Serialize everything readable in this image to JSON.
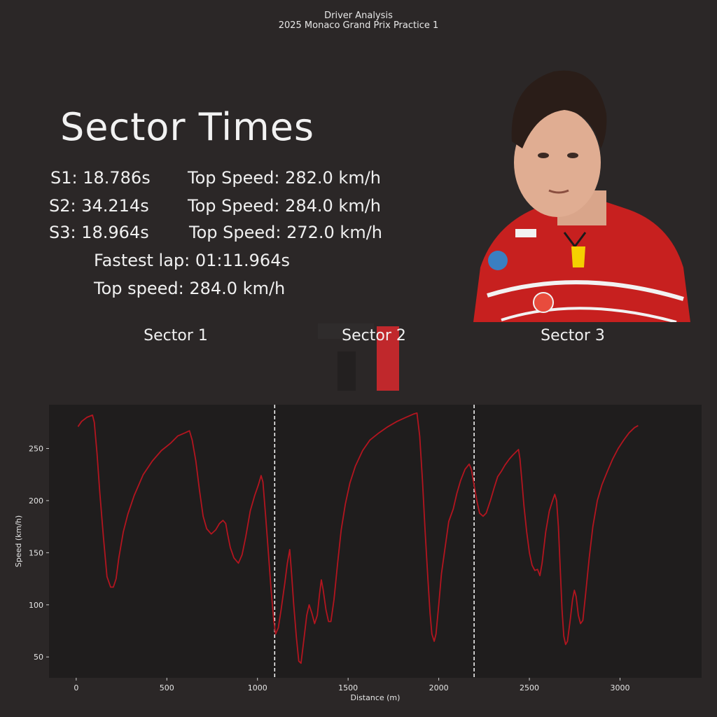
{
  "header": {
    "line1": "Driver Analysis",
    "line2": "2025 Monaco Grand Prix Practice 1"
  },
  "summary": {
    "title": "Sector Times",
    "s1": "S1: 18.786s",
    "s2": "S2: 34.214s",
    "s3": "S3: 18.964s",
    "top1": "Top Speed: 282.0 km/h",
    "top2": "Top Speed: 284.0 km/h",
    "top3": "Top Speed: 272.0 km/h",
    "fastest_lap": "Fastest lap: 01:11.964s",
    "top_speed": "Top speed: 284.0 km/h"
  },
  "sectors": {
    "label1": "Sector 1",
    "label2": "Sector 2",
    "label3": "Sector 3"
  },
  "colors": {
    "background": "#2b2727",
    "plot_bg": "#1f1d1d",
    "line": "#b3151f",
    "brand_red": "#c0282c"
  },
  "chart_data": {
    "type": "line",
    "title": "",
    "xlabel": "Distance (m)",
    "ylabel": "Speed (km/h)",
    "xlim": [
      -150,
      3450
    ],
    "ylim": [
      30,
      292
    ],
    "xticks": [
      0,
      500,
      1000,
      1500,
      2000,
      2500,
      3000
    ],
    "yticks": [
      50,
      100,
      150,
      200,
      250
    ],
    "sector_boundaries": [
      1095,
      2195
    ],
    "grid": false,
    "series": [
      {
        "points": [
          [
            10,
            271
          ],
          [
            30,
            276
          ],
          [
            60,
            280
          ],
          [
            90,
            282
          ],
          [
            100,
            275
          ],
          [
            115,
            245
          ],
          [
            130,
            208
          ],
          [
            150,
            165
          ],
          [
            170,
            127
          ],
          [
            190,
            117
          ],
          [
            205,
            117
          ],
          [
            220,
            125
          ],
          [
            235,
            145
          ],
          [
            260,
            170
          ],
          [
            285,
            187
          ],
          [
            320,
            205
          ],
          [
            370,
            225
          ],
          [
            420,
            238
          ],
          [
            470,
            248
          ],
          [
            520,
            255
          ],
          [
            560,
            262
          ],
          [
            600,
            265
          ],
          [
            625,
            267
          ],
          [
            640,
            258
          ],
          [
            660,
            238
          ],
          [
            680,
            210
          ],
          [
            700,
            185
          ],
          [
            720,
            173
          ],
          [
            745,
            168
          ],
          [
            770,
            172
          ],
          [
            790,
            178
          ],
          [
            810,
            181
          ],
          [
            825,
            178
          ],
          [
            835,
            168
          ],
          [
            850,
            155
          ],
          [
            870,
            145
          ],
          [
            895,
            140
          ],
          [
            915,
            148
          ],
          [
            935,
            165
          ],
          [
            960,
            190
          ],
          [
            985,
            205
          ],
          [
            1005,
            215
          ],
          [
            1020,
            224
          ],
          [
            1030,
            218
          ],
          [
            1045,
            185
          ],
          [
            1060,
            150
          ],
          [
            1075,
            115
          ],
          [
            1090,
            85
          ],
          [
            1100,
            72
          ],
          [
            1115,
            78
          ],
          [
            1130,
            95
          ],
          [
            1150,
            120
          ],
          [
            1165,
            140
          ],
          [
            1178,
            153
          ],
          [
            1188,
            130
          ],
          [
            1200,
            100
          ],
          [
            1215,
            68
          ],
          [
            1228,
            46
          ],
          [
            1240,
            44
          ],
          [
            1255,
            65
          ],
          [
            1272,
            90
          ],
          [
            1285,
            100
          ],
          [
            1300,
            92
          ],
          [
            1315,
            82
          ],
          [
            1330,
            90
          ],
          [
            1342,
            110
          ],
          [
            1352,
            124
          ],
          [
            1362,
            115
          ],
          [
            1378,
            95
          ],
          [
            1392,
            84
          ],
          [
            1405,
            84
          ],
          [
            1422,
            105
          ],
          [
            1442,
            140
          ],
          [
            1462,
            172
          ],
          [
            1485,
            197
          ],
          [
            1510,
            217
          ],
          [
            1540,
            233
          ],
          [
            1580,
            248
          ],
          [
            1620,
            258
          ],
          [
            1670,
            265
          ],
          [
            1720,
            271
          ],
          [
            1770,
            276
          ],
          [
            1820,
            280
          ],
          [
            1860,
            283
          ],
          [
            1880,
            284
          ],
          [
            1895,
            262
          ],
          [
            1910,
            220
          ],
          [
            1925,
            170
          ],
          [
            1940,
            125
          ],
          [
            1952,
            92
          ],
          [
            1962,
            72
          ],
          [
            1975,
            65
          ],
          [
            1985,
            72
          ],
          [
            2000,
            100
          ],
          [
            2015,
            130
          ],
          [
            2035,
            155
          ],
          [
            2055,
            180
          ],
          [
            2080,
            192
          ],
          [
            2100,
            207
          ],
          [
            2120,
            219
          ],
          [
            2145,
            230
          ],
          [
            2168,
            235
          ],
          [
            2180,
            230
          ],
          [
            2195,
            215
          ],
          [
            2210,
            200
          ],
          [
            2225,
            188
          ],
          [
            2245,
            185
          ],
          [
            2262,
            188
          ],
          [
            2285,
            200
          ],
          [
            2305,
            212
          ],
          [
            2325,
            223
          ],
          [
            2345,
            228
          ],
          [
            2365,
            234
          ],
          [
            2390,
            240
          ],
          [
            2410,
            244
          ],
          [
            2428,
            247
          ],
          [
            2440,
            249
          ],
          [
            2448,
            240
          ],
          [
            2458,
            220
          ],
          [
            2470,
            195
          ],
          [
            2485,
            170
          ],
          [
            2500,
            150
          ],
          [
            2515,
            138
          ],
          [
            2530,
            133
          ],
          [
            2545,
            134
          ],
          [
            2558,
            128
          ],
          [
            2570,
            140
          ],
          [
            2590,
            170
          ],
          [
            2610,
            190
          ],
          [
            2628,
            200
          ],
          [
            2640,
            206
          ],
          [
            2650,
            200
          ],
          [
            2660,
            175
          ],
          [
            2670,
            135
          ],
          [
            2680,
            95
          ],
          [
            2690,
            70
          ],
          [
            2700,
            62
          ],
          [
            2710,
            65
          ],
          [
            2725,
            85
          ],
          [
            2738,
            105
          ],
          [
            2748,
            114
          ],
          [
            2758,
            108
          ],
          [
            2770,
            90
          ],
          [
            2782,
            82
          ],
          [
            2795,
            85
          ],
          [
            2810,
            110
          ],
          [
            2830,
            145
          ],
          [
            2850,
            175
          ],
          [
            2875,
            200
          ],
          [
            2900,
            215
          ],
          [
            2930,
            228
          ],
          [
            2960,
            240
          ],
          [
            2990,
            250
          ],
          [
            3020,
            258
          ],
          [
            3050,
            265
          ],
          [
            3080,
            270
          ],
          [
            3100,
            272
          ]
        ]
      }
    ]
  }
}
